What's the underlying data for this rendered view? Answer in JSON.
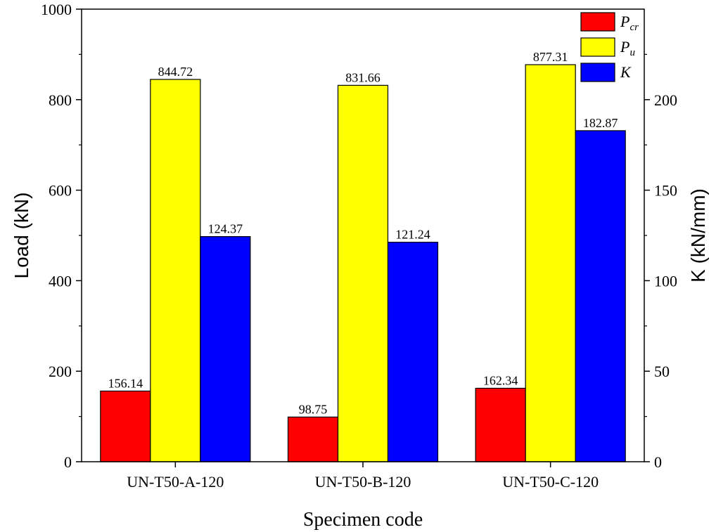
{
  "chart_data": {
    "type": "bar",
    "xlabel": "Specimen code",
    "ylabel": "Load (kN)",
    "y2label": "K (kN/mm)",
    "categories": [
      "UN-T50-A-120",
      "UN-T50-B-120",
      "UN-T50-C-120"
    ],
    "ylim": [
      0,
      1000
    ],
    "y2lim": [
      0,
      250
    ],
    "yticks": [
      0,
      200,
      400,
      600,
      800,
      1000
    ],
    "y2ticks": [
      0,
      50,
      100,
      150,
      200
    ],
    "legend_position": "top-right",
    "series": [
      {
        "name": "P_cr",
        "legend_main": "P",
        "legend_sub": "cr",
        "axis": "left",
        "color": "#ff0000",
        "values": [
          156.14,
          98.75,
          162.34
        ],
        "labels": [
          "156.14",
          "98.75",
          "162.34"
        ]
      },
      {
        "name": "P_u",
        "legend_main": "P",
        "legend_sub": "u",
        "axis": "left",
        "color": "#ffff00",
        "values": [
          844.72,
          831.66,
          877.31
        ],
        "labels": [
          "844.72",
          "831.66",
          "877.31"
        ]
      },
      {
        "name": "K",
        "legend_main": "K",
        "legend_sub": "",
        "axis": "right",
        "color": "#0000ff",
        "values": [
          124.37,
          121.24,
          182.87
        ],
        "labels": [
          "124.37",
          "121.24",
          "182.87"
        ]
      }
    ]
  }
}
